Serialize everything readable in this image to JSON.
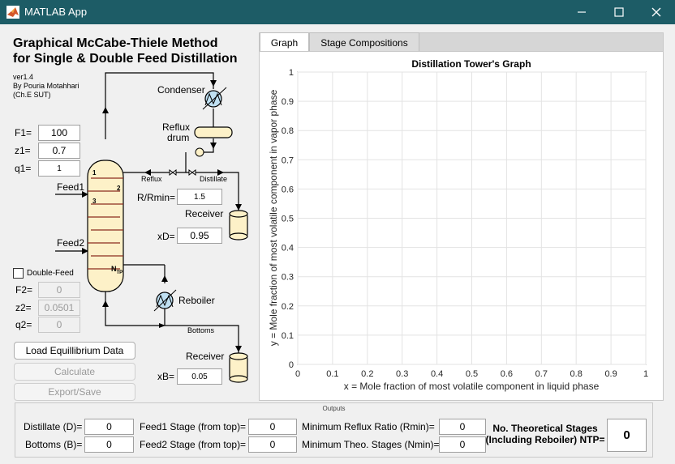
{
  "window": {
    "title": "MATLAB App"
  },
  "header": {
    "title_line1": "Graphical McCabe-Thiele Method",
    "title_line2": "for Single & Double Feed Distillation",
    "version": "ver1.4",
    "author": "By Pouria Motahhari",
    "affiliation": "(Ch.E SUT)"
  },
  "inputs": {
    "F1_label": "F1=",
    "F1": "100",
    "z1_label": "z1=",
    "z1": "0.7",
    "q1_label": "q1=",
    "q1": "1",
    "double_feed_label": "Double-Feed",
    "F2_label": "F2=",
    "F2": "0",
    "z2_label": "z2=",
    "z2": "0.0501",
    "q2_label": "q2=",
    "q2": "0",
    "rrmin_label": "R/Rmin=",
    "rrmin": "1.5",
    "xD_label": "xD=",
    "xD": "0.95",
    "xB_label": "xB=",
    "xB": "0.05"
  },
  "diagram": {
    "condenser": "Condenser",
    "reflux_drum_1": "Reflux",
    "reflux_drum_2": "drum",
    "reflux": "Reflux",
    "distillate": "Distillate",
    "receiver_top": "Receiver",
    "receiver_bottom": "Receiver",
    "reboiler": "Reboiler",
    "bottoms": "Bottoms",
    "feed1": "Feed1",
    "feed2": "Feed2",
    "tray1": "1",
    "tray2": "2",
    "tray3": "3",
    "tray_n": "N",
    "tray_n_sub": "TP"
  },
  "buttons": {
    "load": "Load Equillibrium Data",
    "calculate": "Calculate",
    "export": "Export/Save"
  },
  "tabs": [
    {
      "label": "Graph"
    },
    {
      "label": "Stage Compositions"
    }
  ],
  "chart_data": {
    "type": "scatter",
    "title": "Distillation Tower's Graph",
    "xlabel": "x = Mole  fraction of most volatile component in liquid phase",
    "ylabel": "y = Mole fraction of most volatile component in vapor phase",
    "xlim": [
      0,
      1
    ],
    "ylim": [
      0,
      1
    ],
    "xticks": [
      "0",
      "0.1",
      "0.2",
      "0.3",
      "0.4",
      "0.5",
      "0.6",
      "0.7",
      "0.8",
      "0.9",
      "1"
    ],
    "yticks": [
      "0",
      "0.1",
      "0.2",
      "0.3",
      "0.4",
      "0.5",
      "0.6",
      "0.7",
      "0.8",
      "0.9",
      "1"
    ],
    "grid": true,
    "series": []
  },
  "outputs": {
    "caption": "Outputs",
    "distillate_label": "Distillate (D)=",
    "distillate": "0",
    "bottoms_label": "Bottoms (B)=",
    "bottoms": "0",
    "feed1_stage_label": "Feed1 Stage (from top)=",
    "feed1_stage": "0",
    "feed2_stage_label": "Feed2 Stage (from top)=",
    "feed2_stage": "0",
    "rmin_label": "Minimum Reflux Ratio (Rmin)=",
    "rmin": "0",
    "nmin_label": "Minimum Theo. Stages (Nmin)=",
    "nmin": "0",
    "ntp_label_1": "No. Theoretical Stages",
    "ntp_label_2": "(Including Reboiler) NTP=",
    "ntp": "0"
  }
}
